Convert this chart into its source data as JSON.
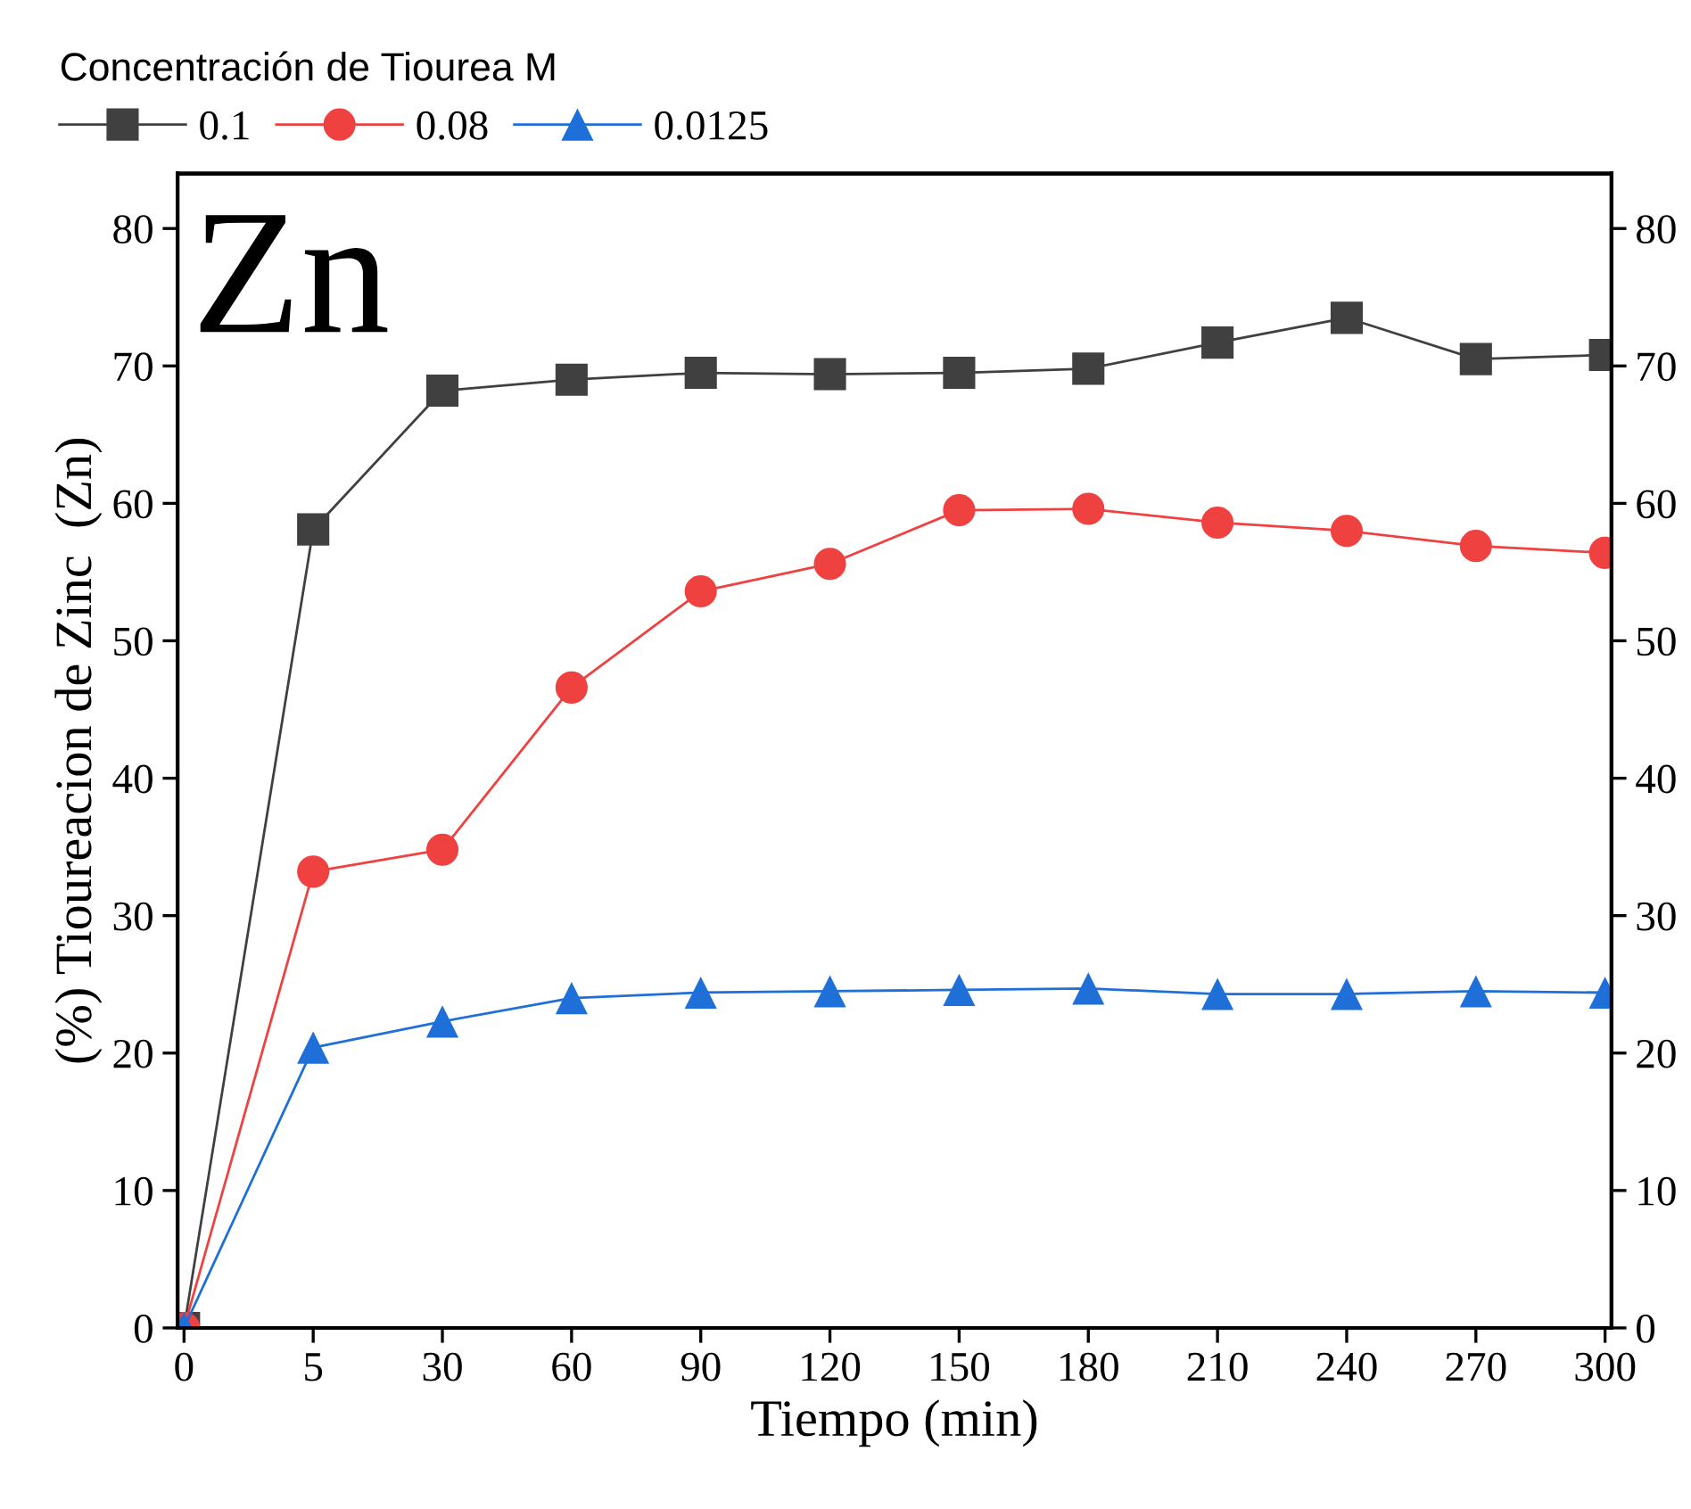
{
  "chart_data": {
    "type": "line",
    "xlabel": "Tiempo (min)",
    "ylabel": "(%) Tioureacion de Zinc  (Zn)",
    "legend_title": "Concentración de Tiourea M",
    "legend": "top left",
    "categories": [
      "0",
      "5",
      "30",
      "60",
      "90",
      "120",
      "150",
      "180",
      "210",
      "240",
      "270",
      "300"
    ],
    "ylim": [
      0,
      84
    ],
    "yticks": [
      0,
      10,
      20,
      30,
      40,
      50,
      60,
      70,
      80
    ],
    "y2lim": [
      0,
      84
    ],
    "y2ticks": [
      0,
      10,
      20,
      30,
      40,
      50,
      60,
      70,
      80
    ],
    "annotations": [
      "Zn"
    ],
    "grid": false,
    "line_style": "solid",
    "series": [
      {
        "name": "0.1",
        "color": "#404040",
        "marker": "square",
        "values": [
          0,
          58.1,
          68.2,
          69.0,
          69.5,
          69.4,
          69.5,
          69.8,
          71.7,
          73.5,
          70.5,
          70.8
        ]
      },
      {
        "name": "0.08",
        "color": "#f04141",
        "marker": "circle",
        "values": [
          0,
          33.2,
          34.8,
          46.6,
          53.6,
          55.6,
          59.5,
          59.6,
          58.6,
          58.0,
          56.9,
          56.4
        ]
      },
      {
        "name": "0.0125",
        "color": "#1f6fd8",
        "marker": "triangle",
        "values": [
          0,
          20.4,
          22.3,
          24.0,
          24.4,
          24.5,
          24.6,
          24.7,
          24.3,
          24.3,
          24.5,
          24.4
        ]
      }
    ]
  }
}
